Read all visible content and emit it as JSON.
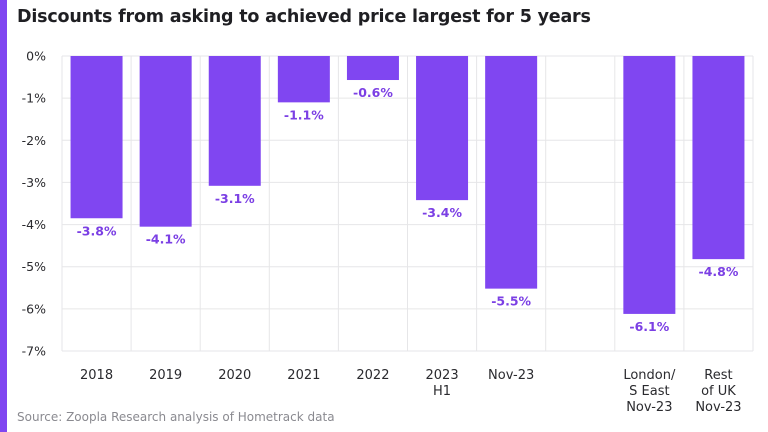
{
  "chart_data": {
    "type": "bar",
    "title": "Discounts from asking to achieved price largest for 5 years",
    "source": "Source: Zoopla Research analysis of Hometrack data",
    "xlabel": "",
    "ylabel": "",
    "ylim": [
      -7,
      0
    ],
    "yticks": [
      0,
      -1,
      -2,
      -3,
      -4,
      -5,
      -6,
      -7
    ],
    "ytick_labels": [
      "0%",
      "-1%",
      "-2%",
      "-3%",
      "-4%",
      "-5%",
      "-6%",
      "-7%"
    ],
    "grid": true,
    "bar_color": "#8046f1",
    "label_color": "#7b3fe4",
    "categories": [
      [
        "2018"
      ],
      [
        "2019"
      ],
      [
        "2020"
      ],
      [
        "2021"
      ],
      [
        "2022"
      ],
      [
        "2023",
        "H1"
      ],
      [
        "Nov-23"
      ],
      [],
      [
        "London/",
        "S East",
        "Nov-23"
      ],
      [
        "Rest",
        "of UK",
        "Nov-23"
      ]
    ],
    "values": [
      -3.85,
      -4.05,
      -3.08,
      -1.1,
      -0.57,
      -3.42,
      -5.52,
      null,
      -6.12,
      -4.82
    ],
    "value_labels": [
      "-3.8%",
      "-4.1%",
      "-3.1%",
      "-1.1%",
      "-0.6%",
      "-3.4%",
      "-5.5%",
      "",
      "-6.1%",
      "-4.8%"
    ]
  }
}
